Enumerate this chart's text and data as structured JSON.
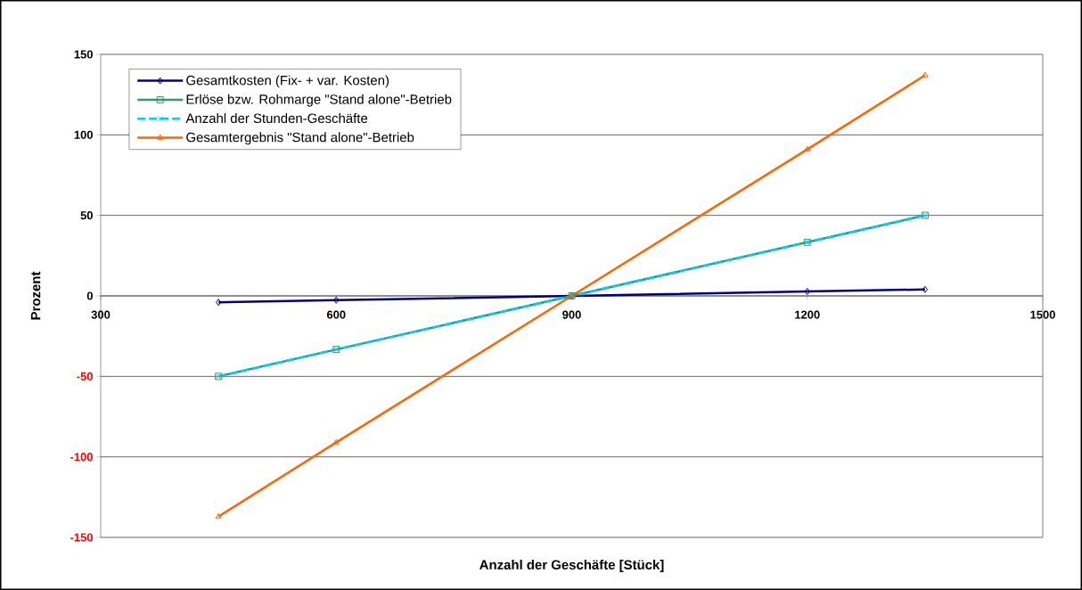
{
  "chart_data": {
    "type": "line",
    "xlabel": "Anzahl der Geschäfte [Stück]",
    "ylabel": "Prozent",
    "x": [
      450,
      600,
      900,
      1200,
      1350
    ],
    "series": [
      {
        "name": "Gesamtkosten (Fix- + var. Kosten)",
        "color": "#000080",
        "marker": "diamond",
        "line_style": "solid",
        "values": [
          -4,
          -2.7,
          0,
          2.7,
          4
        ]
      },
      {
        "name": "Erlöse bzw. Rohmarge \"Stand alone\"-Betrieb",
        "color": "#339966",
        "marker": "square",
        "line_style": "solid",
        "values": [
          -50,
          -33.3,
          0,
          33.3,
          50
        ]
      },
      {
        "name": "Anzahl der Stunden-Geschäfte",
        "color": "#00ccff",
        "marker": "cross",
        "line_style": "dashed",
        "values": [
          -50,
          -33.3,
          0,
          33.3,
          50
        ]
      },
      {
        "name": "Gesamtergebnis \"Stand alone\"-Betrieb",
        "color": "#ff6600",
        "marker": "triangle",
        "line_style": "solid",
        "values": [
          -137,
          -91,
          0,
          91,
          137
        ]
      }
    ],
    "xlim": [
      300,
      1500
    ],
    "xticks": [
      300,
      600,
      900,
      1200,
      1500
    ],
    "ylim": [
      -150,
      150
    ],
    "yticks": [
      -150,
      -100,
      -50,
      0,
      50,
      100,
      150
    ],
    "grid": "y",
    "legend": "top left"
  }
}
